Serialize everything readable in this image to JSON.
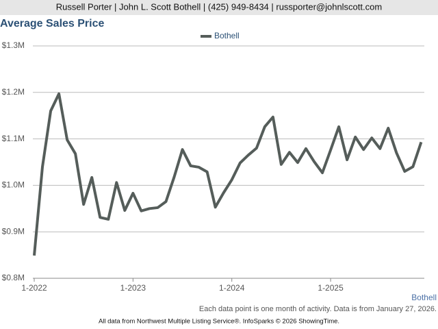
{
  "header": {
    "text": "Russell Porter | John L. Scott Bothell | (425) 949-8434 | russporter@johnlscott.com"
  },
  "chart_data": {
    "type": "line",
    "title": "Average Sales Price",
    "categories": [
      "1-2022",
      null,
      null,
      null,
      null,
      null,
      null,
      null,
      null,
      null,
      null,
      null,
      "1-2023",
      null,
      null,
      null,
      null,
      null,
      null,
      null,
      null,
      null,
      null,
      null,
      "1-2024",
      null,
      null,
      null,
      null,
      null,
      null,
      null,
      null,
      null,
      null,
      null,
      "1-2025",
      null,
      null,
      null,
      null,
      null,
      null,
      null,
      null,
      null,
      null,
      null
    ],
    "series": [
      {
        "name": "Bothell",
        "color": "#555d5a",
        "values": [
          849000,
          1040000,
          1160000,
          1197000,
          1098000,
          1068000,
          959000,
          1017000,
          931000,
          927000,
          1006000,
          946000,
          983000,
          945000,
          950000,
          952000,
          965000,
          1018000,
          1077000,
          1042000,
          1039000,
          1029000,
          953000,
          984000,
          1012000,
          1048000,
          1065000,
          1080000,
          1126000,
          1147000,
          1045000,
          1071000,
          1049000,
          1079000,
          1051000,
          1027000,
          1076000,
          1126000,
          1055000,
          1104000,
          1077000,
          1102000,
          1079000,
          1123000,
          1070000,
          1030000,
          1040000,
          1093000
        ]
      }
    ],
    "ylim": [
      800000,
      1300000
    ],
    "yticks": [
      {
        "value": 800000,
        "label": "$0.8M"
      },
      {
        "value": 900000,
        "label": "$0.9M"
      },
      {
        "value": 1000000,
        "label": "$1.0M"
      },
      {
        "value": 1100000,
        "label": "$1.1M"
      },
      {
        "value": 1200000,
        "label": "$1.2M"
      },
      {
        "value": 1300000,
        "label": "$1.3M"
      }
    ],
    "grid": true,
    "legend": "top",
    "corner_label": "Bothell",
    "note": "Each data point is one month of activity. Data is from January 27, 2026."
  },
  "footer": {
    "text": "All data from Northwest Multiple Listing Service®. InfoSparks © 2026 ShowingTime."
  }
}
